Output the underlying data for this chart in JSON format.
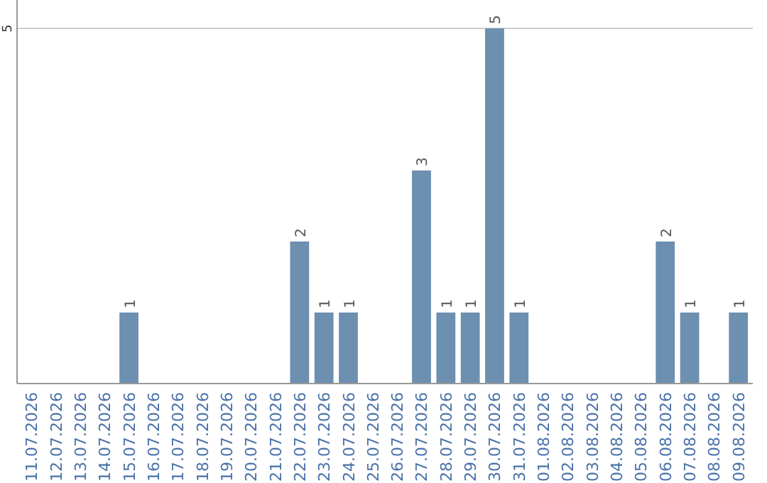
{
  "chart_data": {
    "type": "bar",
    "categories": [
      "11.07.2026",
      "12.07.2026",
      "13.07.2026",
      "14.07.2026",
      "15.07.2026",
      "16.07.2026",
      "17.07.2026",
      "18.07.2026",
      "19.07.2026",
      "20.07.2026",
      "21.07.2026",
      "22.07.2026",
      "23.07.2026",
      "24.07.2026",
      "25.07.2026",
      "26.07.2026",
      "27.07.2026",
      "28.07.2026",
      "29.07.2026",
      "30.07.2026",
      "31.07.2026",
      "01.08.2026",
      "02.08.2026",
      "03.08.2026",
      "04.08.2026",
      "05.08.2026",
      "06.08.2026",
      "07.08.2026",
      "08.08.2026",
      "09.08.2026"
    ],
    "values": [
      0,
      0,
      0,
      0,
      1,
      0,
      0,
      0,
      0,
      0,
      0,
      2,
      1,
      1,
      0,
      0,
      3,
      1,
      1,
      5,
      1,
      0,
      0,
      0,
      0,
      0,
      2,
      1,
      0,
      1
    ],
    "value_labels": [
      null,
      null,
      null,
      null,
      "1",
      null,
      null,
      null,
      null,
      null,
      null,
      "2",
      "1",
      "1",
      null,
      null,
      "3",
      "1",
      "1",
      "5",
      "1",
      null,
      null,
      null,
      null,
      null,
      "2",
      "1",
      null,
      "1"
    ],
    "color": "#6d8fb0",
    "ylim": [
      0,
      5.4
    ],
    "yticks": [
      5
    ],
    "grid": "y"
  }
}
